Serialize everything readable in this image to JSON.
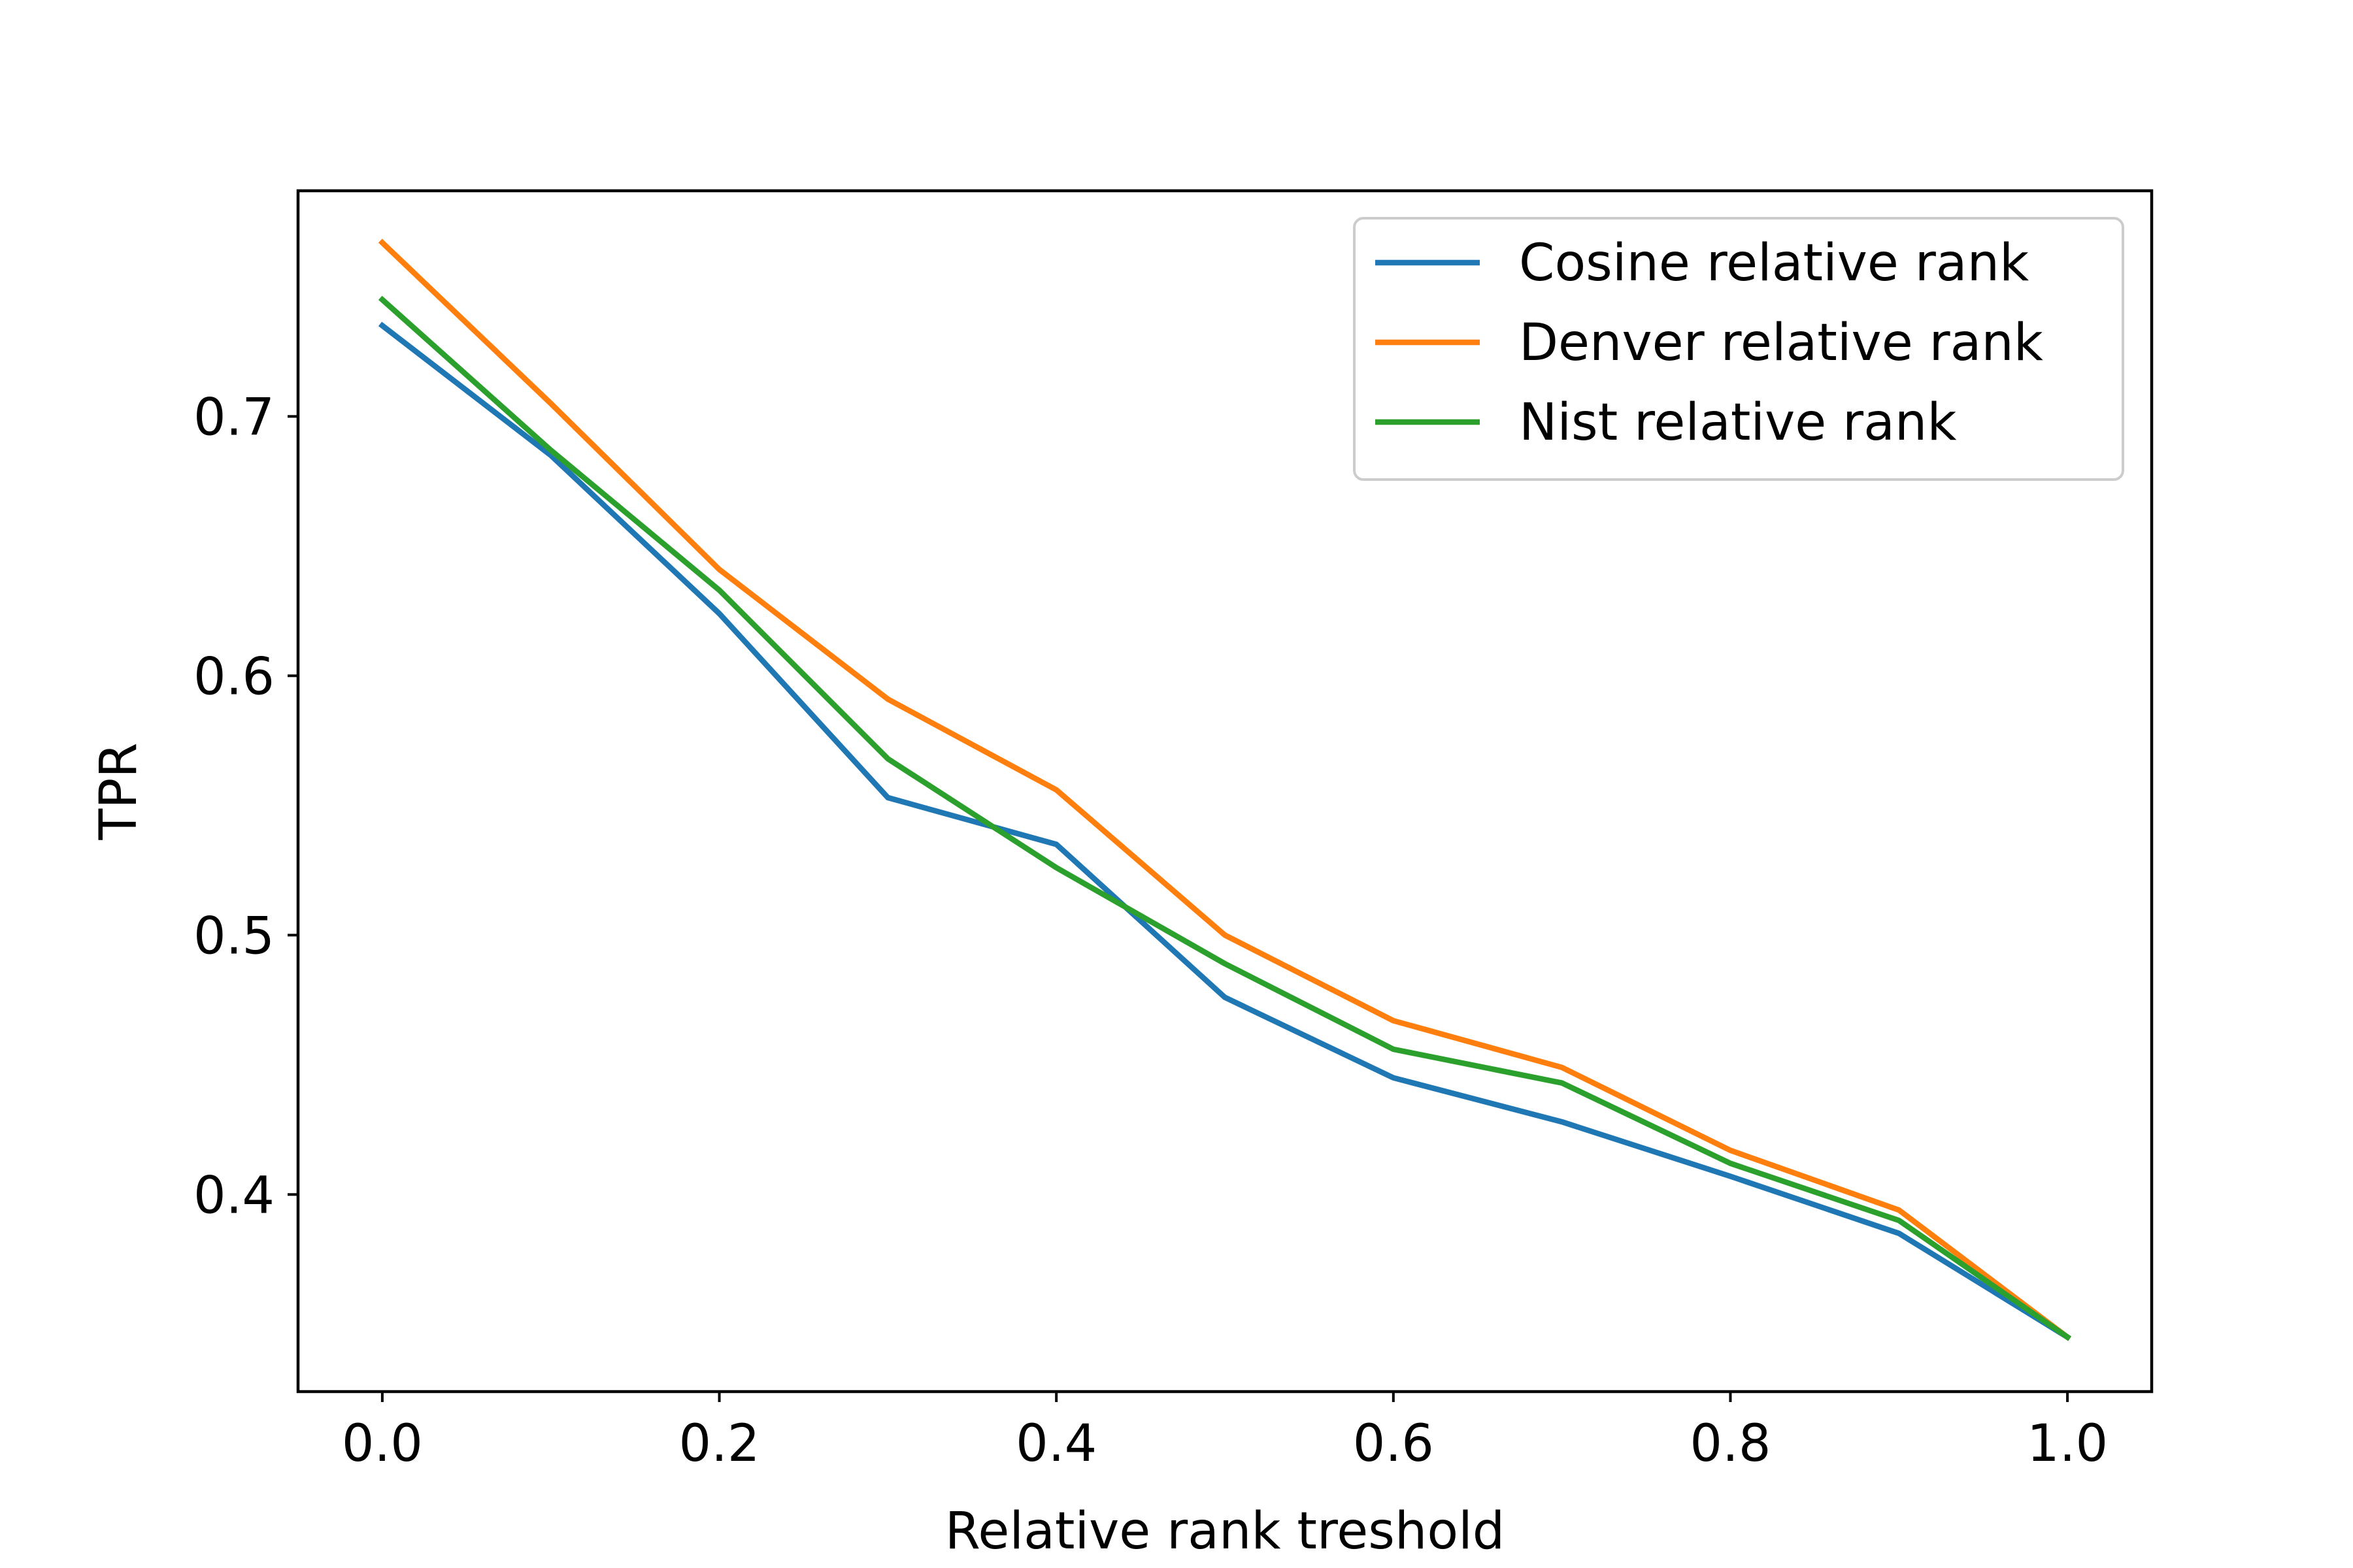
{
  "chart_data": {
    "type": "line",
    "title": "",
    "xlabel": "Relative rank treshold",
    "ylabel": "TPR",
    "xlim": [
      -0.05,
      1.05
    ],
    "ylim": [
      0.324,
      0.787
    ],
    "xticks": [
      0.0,
      0.2,
      0.4,
      0.6,
      0.8,
      1.0
    ],
    "xtick_labels": [
      "0.0",
      "0.2",
      "0.4",
      "0.6",
      "0.8",
      "1.0"
    ],
    "yticks": [
      0.4,
      0.5,
      0.6,
      0.7
    ],
    "ytick_labels": [
      "0.4",
      "0.5",
      "0.6",
      "0.7"
    ],
    "grid": false,
    "legend_position": "top-right",
    "x": [
      0.0,
      0.1,
      0.2,
      0.3,
      0.4,
      0.5,
      0.6,
      0.7,
      0.8,
      0.9,
      1.0
    ],
    "series": [
      {
        "name": "Cosine relative rank",
        "color": "#1f77b4",
        "values": [
          0.735,
          0.685,
          0.624,
          0.553,
          0.535,
          0.476,
          0.445,
          0.428,
          0.407,
          0.385,
          0.345
        ]
      },
      {
        "name": "Denver relative rank",
        "color": "#ff7f0e",
        "values": [
          0.767,
          0.705,
          0.641,
          0.591,
          0.556,
          0.5,
          0.467,
          0.449,
          0.417,
          0.394,
          0.345
        ]
      },
      {
        "name": "Nist relative rank",
        "color": "#2ca02c",
        "values": [
          0.745,
          0.687,
          0.633,
          0.568,
          0.526,
          0.489,
          0.456,
          0.443,
          0.412,
          0.39,
          0.345
        ]
      }
    ]
  }
}
